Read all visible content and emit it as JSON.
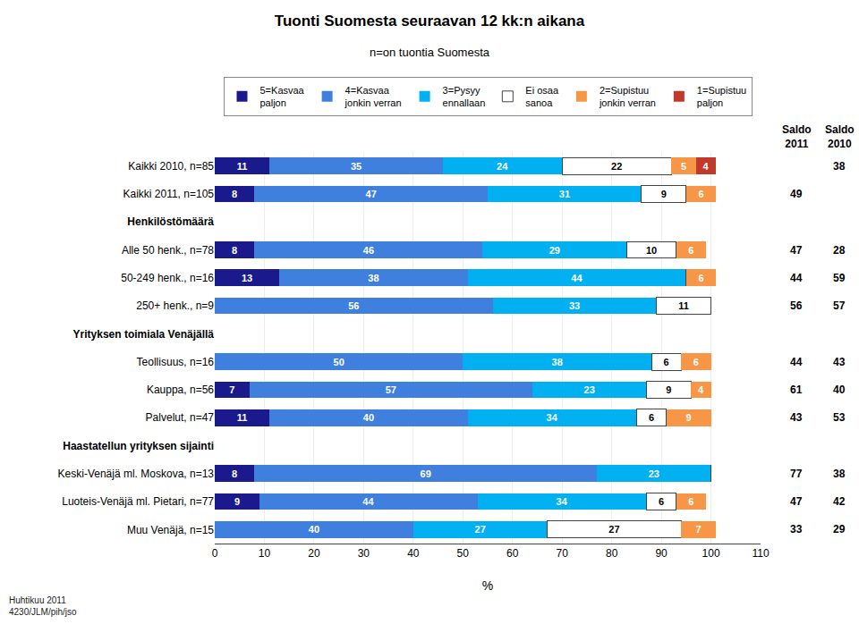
{
  "chart_data": {
    "type": "bar",
    "orientation": "horizontal",
    "stacked": true,
    "title": "Tuonti Suomesta seuraavan 12 kk:n aikana",
    "subtitle": "n=on tuontia Suomesta",
    "categories": [
      "Kaikki 2010, n=85",
      "Kaikki 2011, n=105",
      "Henkilöstömäärä",
      "Alle 50 henk., n=78",
      "50-249 henk., n=16",
      "250+ henk., n=9",
      "Yrityksen toimiala Venäjällä",
      "Teollisuus, n=16",
      "Kauppa, n=56",
      "Palvelut, n=47",
      "Haastatellun yrityksen sijainti",
      "Keski-Venäjä ml. Moskova, n=13",
      "Luoteis-Venäjä ml. Pietari, n=77",
      "Muu Venäjä, n=15"
    ],
    "series": [
      {
        "name": "5=Kasvaa\npaljon",
        "color": "#1a1a8c",
        "values": [
          11,
          8,
          null,
          8,
          13,
          0,
          null,
          0,
          7,
          11,
          null,
          8,
          9,
          0
        ]
      },
      {
        "name": "4=Kasvaa\njonkin verran",
        "color": "#3f7fde",
        "values": [
          35,
          47,
          null,
          46,
          38,
          56,
          null,
          50,
          57,
          40,
          null,
          69,
          44,
          40
        ]
      },
      {
        "name": "3=Pysyy\nennallaan",
        "color": "#00b0f0",
        "values": [
          24,
          31,
          null,
          29,
          44,
          33,
          null,
          38,
          23,
          34,
          null,
          23,
          34,
          27
        ]
      },
      {
        "name": "Ei osaa\nsanoa",
        "color": "#ffffff",
        "values": [
          22,
          9,
          null,
          10,
          0,
          11,
          null,
          6,
          9,
          6,
          null,
          0,
          6,
          27
        ]
      },
      {
        "name": "2=Supistuu\njonkin verran",
        "color": "#f79646",
        "values": [
          5,
          6,
          null,
          6,
          6,
          0,
          null,
          6,
          4,
          9,
          null,
          0,
          6,
          7
        ]
      },
      {
        "name": "1=Supistuu\npaljon",
        "color": "#c0392b",
        "values": [
          4,
          0,
          null,
          0,
          0,
          0,
          null,
          0,
          0,
          0,
          null,
          0,
          0,
          0
        ]
      }
    ],
    "columns": [
      {
        "name": "Saldo\n2011",
        "values": [
          null,
          49,
          null,
          47,
          44,
          56,
          null,
          44,
          61,
          43,
          null,
          77,
          47,
          33
        ]
      },
      {
        "name": "Saldo\n2010",
        "values": [
          38,
          null,
          null,
          28,
          59,
          57,
          null,
          43,
          40,
          53,
          null,
          38,
          42,
          29
        ]
      }
    ],
    "annotations": [
      "Huhtikuu 2011\n4230/JLM/pih/jso"
    ],
    "xlabel": "%",
    "xlim": [
      0,
      110
    ],
    "xticks": [
      0,
      10,
      20,
      30,
      40,
      50,
      60,
      70,
      80,
      90,
      100,
      110
    ],
    "grid": true,
    "legend": "top",
    "data_labels": true
  }
}
